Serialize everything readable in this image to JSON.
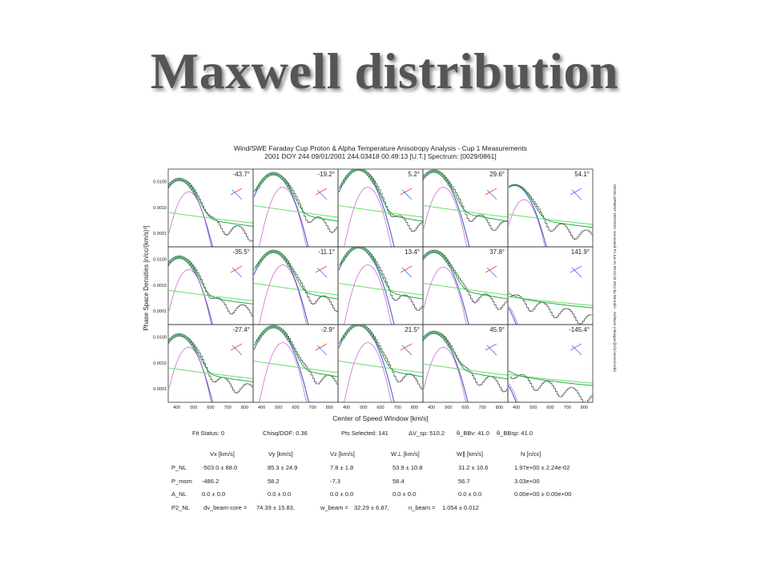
{
  "slide": {
    "title": "Maxwell distribution"
  },
  "chart_data": {
    "type": "line",
    "title": "Wind/SWE Faraday Cup Proton & Alpha Temperature Anisotropy Analysis - Cup 1 Measurements",
    "subtitle": "2001 DOY 244 09/01/2001 244.03418 00:49:13 [U.T.] Spectrum: [0029/0861]",
    "ylabel": "Phase Space Densities [n/cc/(km/s)³]",
    "xlabel": "Center of Speed Window [km/s]",
    "side_note": "DEVELOPMENT VERSION: Generated Fri Jun 01 09:42:33 2012 by MCKallo - Software (mkasper@cfa.harvard.edu)",
    "xlim": [
      350,
      850
    ],
    "x_ticks": [
      "400",
      "500",
      "600",
      "700",
      "800"
    ],
    "y_scale": "log",
    "y_ticks": [
      "0.0100",
      "0.0010",
      "0.0001"
    ],
    "y_tick_values": [
      0.01,
      0.001,
      0.0001
    ],
    "ylim": [
      3e-05,
      0.03
    ],
    "grid": false,
    "colors": {
      "data": "#555555",
      "core": "#3355cc",
      "beam": "#cc55cc",
      "total": "#22aa44",
      "bg": "#66dd66",
      "arrow_red": "#ff3333",
      "arrow_blue": "#3377ff"
    },
    "panels": [
      {
        "angle": "-43.7°",
        "peak": 0.012,
        "beam": 0.004,
        "tail": 0.0006,
        "mode": "wing",
        "arrow": "r"
      },
      {
        "angle": "-19.2°",
        "peak": 0.02,
        "beam": 0.006,
        "tail": 0.0012,
        "mode": "full",
        "arrow": "r"
      },
      {
        "angle": "5.2°",
        "peak": 0.03,
        "beam": 0.006,
        "tail": 0.0012,
        "mode": "full",
        "arrow": "r"
      },
      {
        "angle": "29.6°",
        "peak": 0.025,
        "beam": 0.006,
        "tail": 0.0012,
        "mode": "wing",
        "arrow": "r"
      },
      {
        "angle": "54.1°",
        "peak": 0.007,
        "beam": 0.002,
        "tail": 0.0005,
        "mode": "edge",
        "arrow": "b"
      },
      {
        "angle": "-35.5°",
        "peak": 0.012,
        "beam": 0.004,
        "tail": 0.0006,
        "mode": "wing",
        "arrow": "r"
      },
      {
        "angle": "-11.1°",
        "peak": 0.02,
        "beam": 0.006,
        "tail": 0.0012,
        "mode": "full",
        "arrow": "r"
      },
      {
        "angle": "13.4°",
        "peak": 0.03,
        "beam": 0.006,
        "tail": 0.0012,
        "mode": "full",
        "arrow": "r"
      },
      {
        "angle": "37.8°",
        "peak": 0.02,
        "beam": 0.005,
        "tail": 0.0012,
        "mode": "wing",
        "arrow": "r"
      },
      {
        "angle": "141.9°",
        "peak": 0.0004,
        "beam": 0.0002,
        "tail": 0.0003,
        "mode": "none",
        "arrow": "b"
      },
      {
        "angle": "-27.4°",
        "peak": 0.012,
        "beam": 0.004,
        "tail": 0.0006,
        "mode": "wing",
        "arrow": "r"
      },
      {
        "angle": "-2.9°",
        "peak": 0.025,
        "beam": 0.006,
        "tail": 0.0012,
        "mode": "full",
        "arrow": "r"
      },
      {
        "angle": "21.5°",
        "peak": 0.03,
        "beam": 0.006,
        "tail": 0.0012,
        "mode": "full",
        "arrow": "r"
      },
      {
        "angle": "45.9°",
        "peak": 0.015,
        "beam": 0.004,
        "tail": 0.0009,
        "mode": "wing",
        "arrow": "b"
      },
      {
        "angle": "-145.4°",
        "peak": 0.0004,
        "beam": 0.0002,
        "tail": 0.0003,
        "mode": "none",
        "arrow": "b"
      }
    ],
    "fit_status_row": [
      "Fit Status:   0",
      "Chisq/DOF:   0.36",
      "Pts Selected: 141",
      "ΔV_sp: 510.2",
      "θ_BBv: 41.0",
      "θ_BBsp: 41.0"
    ],
    "param_headers": [
      "Vx [km/s]",
      "Vy [km/s]",
      "Vz [km/s]",
      "W⊥ [km/s]",
      "W∥ [km/s]",
      "N [n/cc]"
    ],
    "param_rows": [
      {
        "label": "P_NL",
        "cells": [
          "-503.0 ±   88.0",
          "85.3 ±  24.9",
          "7.8 ±   1.8",
          "53.9 ±  10.8",
          "31.2 ±  10.6",
          "1.97e+00 ± 2.24e-02"
        ]
      },
      {
        "label": "P_mom",
        "cells": [
          "-486.2",
          "58.2",
          "-7.3",
          "58.4",
          "56.7",
          "3.03e+00"
        ]
      },
      {
        "label": "A_NL",
        "cells": [
          "0.0 ±   0.0",
          "0.0 ±   0.0",
          "0.0 ±   0.0",
          "0.0 ±   0.0",
          "0.0 ±   0.0",
          "0.00e+00 ± 0.00e+00"
        ]
      }
    ],
    "p2_row": {
      "label": "P2_NL",
      "dv_label": "dv_beam-core =",
      "dv_value": "74.39 ±  15.83,",
      "w_label": "w_beam =",
      "w_value": "32.29 ±  6.87,",
      "n_label": "n_beam =",
      "n_value": "1.054 ±  0.012"
    }
  }
}
